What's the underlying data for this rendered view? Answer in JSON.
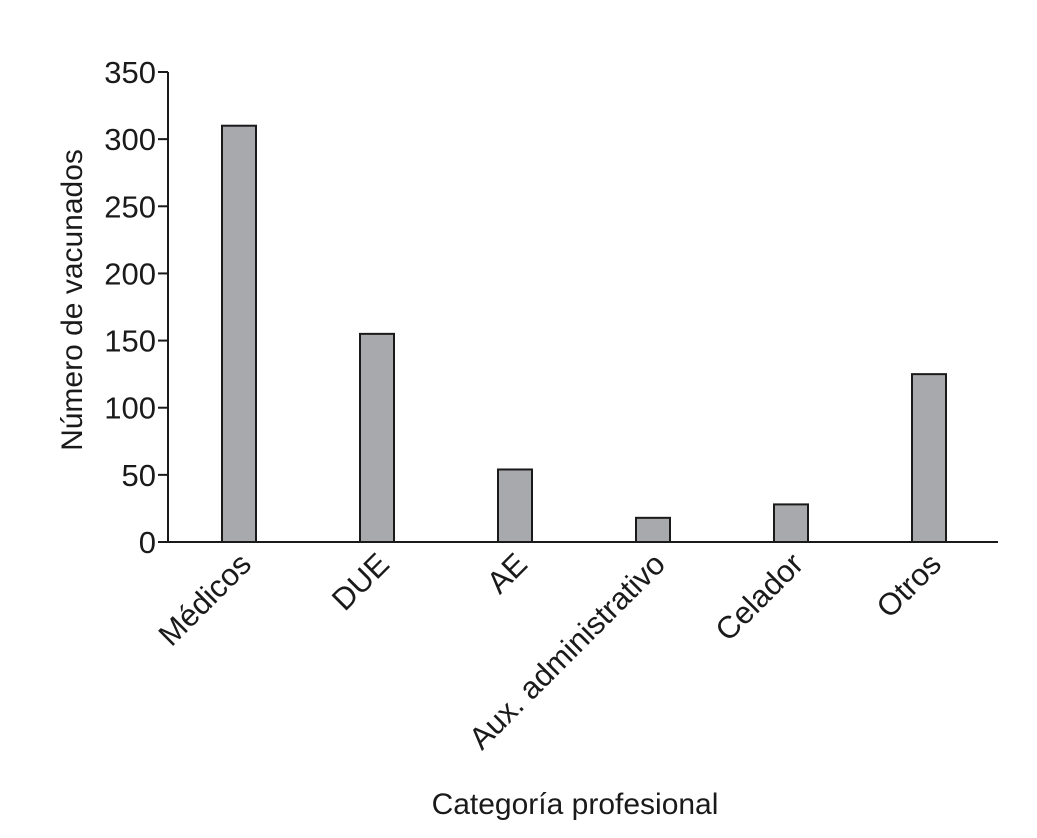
{
  "chart_data": {
    "type": "bar",
    "categories": [
      "Médicos",
      "DUE",
      "AE",
      "Aux. administrativo",
      "Celador",
      "Otros"
    ],
    "values": [
      310,
      155,
      54,
      18,
      28,
      125
    ],
    "title": "",
    "xlabel": "Categoría profesional",
    "ylabel": "Número de vacunados",
    "ylim": [
      0,
      350
    ],
    "yticks": [
      0,
      50,
      100,
      150,
      200,
      250,
      300,
      350
    ],
    "grid": false,
    "legend": "none",
    "colors": {
      "bar_fill": "#a7a9ac",
      "bar_stroke": "#1a1a1a",
      "axis": "#1a1a1a",
      "text": "#1a1a1a"
    }
  }
}
